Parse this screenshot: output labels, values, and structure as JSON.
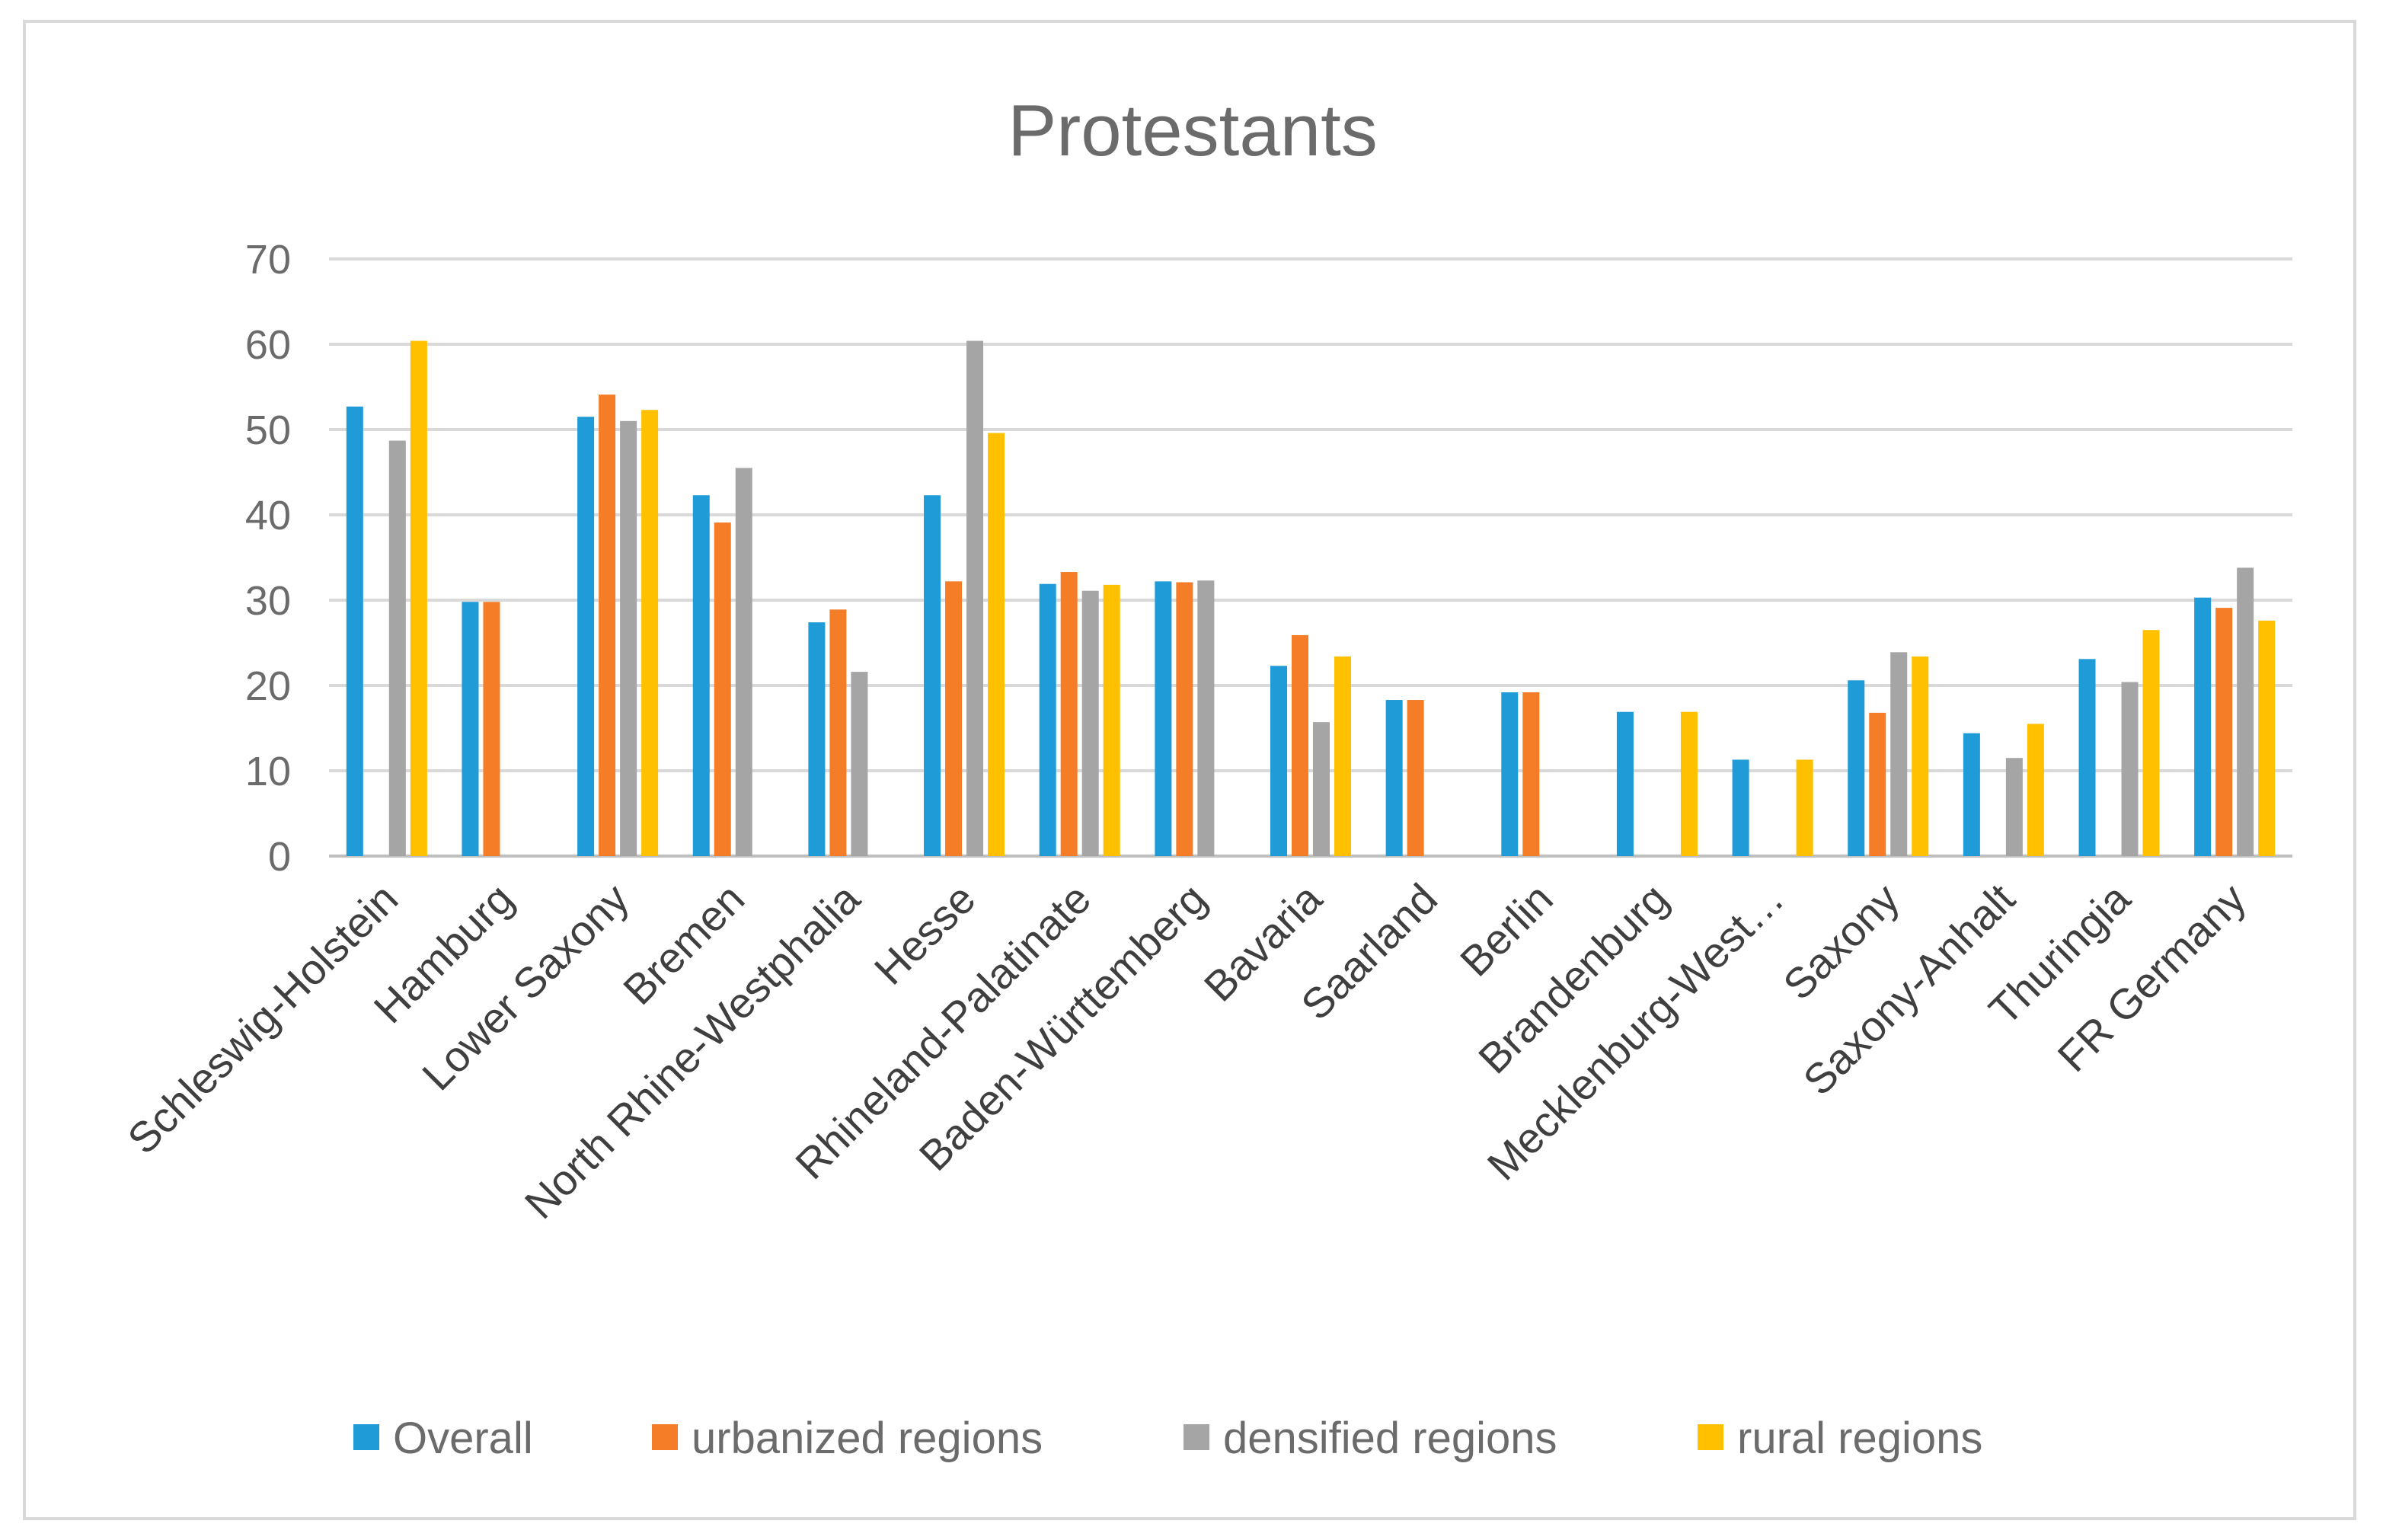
{
  "chart_data": {
    "type": "bar",
    "title": "Protestants",
    "xlabel": "",
    "ylabel": "",
    "ylim": [
      0,
      70
    ],
    "yticks": [
      0,
      10,
      20,
      30,
      40,
      50,
      60,
      70
    ],
    "grid": true,
    "legend_position": "bottom",
    "categories": [
      "Schleswig-Holstein",
      "Hamburg",
      "Lower Saxony",
      "Bremen",
      "North Rhine-Westphalia",
      "Hesse",
      "Rhineland-Palatinate",
      "Baden-Württemberg",
      "Bavaria",
      "Saarland",
      "Berlin",
      "Brandenburg",
      "Mecklenburg-West…",
      "Saxony",
      "Saxony-Anhalt",
      "Thuringia",
      "FR Germany"
    ],
    "series": [
      {
        "name": "Overall",
        "color": "#1f9bd7",
        "values": [
          52.7,
          29.8,
          51.5,
          42.3,
          27.4,
          42.3,
          31.9,
          32.2,
          22.3,
          18.3,
          19.2,
          16.9,
          11.3,
          20.6,
          14.4,
          23.1,
          30.3
        ]
      },
      {
        "name": "urbanized regions",
        "color": "#f57d28",
        "values": [
          null,
          29.8,
          54.1,
          39.1,
          28.9,
          32.2,
          33.3,
          32.1,
          25.9,
          18.3,
          19.2,
          null,
          null,
          16.8,
          null,
          null,
          29.1
        ]
      },
      {
        "name": "densified regions",
        "color": "#a5a5a5",
        "values": [
          48.7,
          null,
          51.0,
          45.5,
          21.6,
          60.4,
          31.1,
          32.3,
          15.7,
          null,
          null,
          null,
          null,
          23.9,
          11.5,
          20.4,
          33.8
        ]
      },
      {
        "name": "rural regions",
        "color": "#ffc000",
        "values": [
          60.4,
          null,
          52.3,
          null,
          null,
          49.6,
          31.8,
          null,
          23.4,
          null,
          null,
          16.9,
          11.3,
          23.4,
          15.5,
          26.5,
          27.6
        ]
      }
    ]
  }
}
